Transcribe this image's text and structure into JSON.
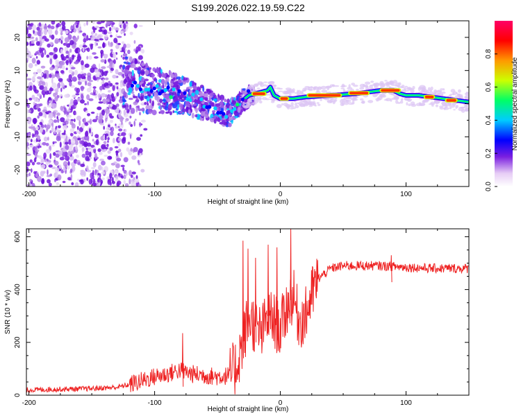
{
  "title": "S199.2026.022.19.59.C22",
  "chart_data": [
    {
      "type": "heatmap",
      "xlabel": "Height of straight line (km)",
      "ylabel": "Frequency (Hz)",
      "xlim": [
        -202,
        150
      ],
      "ylim": [
        -25,
        25
      ],
      "xticks": [
        -200,
        -100,
        0,
        100
      ],
      "yticks": [
        -20,
        -10,
        0,
        10,
        20
      ],
      "colorbar": {
        "label": "Normalized spectral amplitude",
        "range": [
          0,
          1
        ],
        "ticks": [
          0.0,
          0.2,
          0.4,
          0.6,
          0.8
        ],
        "tick_labels": [
          "0.0",
          "0.2",
          "0.4",
          "0.6",
          "0.8"
        ],
        "colors": [
          "#ffffff",
          "#6600cc",
          "#0000ff",
          "#00ccff",
          "#00ff66",
          "#ccff00",
          "#ff9900",
          "#ff0000",
          "#ff0066"
        ]
      },
      "ridge": {
        "x": [
          -120,
          -110,
          -100,
          -90,
          -80,
          -70,
          -60,
          -50,
          -40,
          -35,
          -30,
          -25,
          -20,
          -15,
          -10,
          -8,
          -5,
          0,
          10,
          20,
          40,
          60,
          80,
          90,
          95,
          100,
          110,
          120,
          130,
          140,
          150
        ],
        "freq": [
          6,
          5,
          4,
          3.5,
          2.5,
          1.5,
          0,
          -1.5,
          -3,
          -1,
          1,
          2.5,
          3,
          3.5,
          4,
          5,
          2.5,
          1.5,
          1.5,
          2,
          2.5,
          3,
          4,
          4,
          3,
          2.5,
          2.5,
          2,
          1.5,
          1,
          0.5
        ]
      },
      "peak_segments": [
        {
          "x": [
            -22,
            -12
          ],
          "freq": 3
        },
        {
          "x": [
            0,
            6
          ],
          "freq": 1.5
        },
        {
          "x": [
            22,
            48
          ],
          "freq": 2.5
        },
        {
          "x": [
            55,
            70
          ],
          "freq": 3.2
        },
        {
          "x": [
            80,
            95
          ],
          "freq": 4
        },
        {
          "x": [
            115,
            122
          ],
          "freq": 2
        },
        {
          "x": [
            132,
            140
          ],
          "freq": 1
        }
      ]
    },
    {
      "type": "line",
      "xlabel": "Height of straight line (km)",
      "ylabel": "SNR (10 * v/v)",
      "xlim": [
        -202,
        150
      ],
      "ylim": [
        0,
        630
      ],
      "xticks": [
        -200,
        -100,
        0,
        100
      ],
      "yticks": [
        0,
        200,
        400,
        600
      ],
      "series": [
        {
          "name": "SNR",
          "color": "#ee2222",
          "x": [
            -202,
            -180,
            -150,
            -130,
            -120,
            -110,
            -100,
            -90,
            -80,
            -70,
            -60,
            -50,
            -40,
            -35,
            -30,
            -25,
            -20,
            -15,
            -10,
            -5,
            0,
            5,
            10,
            15,
            20,
            25,
            30,
            40,
            50,
            60,
            80,
            100,
            120,
            150
          ],
          "y": [
            20,
            22,
            25,
            30,
            40,
            55,
            70,
            80,
            95,
            80,
            75,
            70,
            75,
            110,
            200,
            300,
            260,
            230,
            300,
            280,
            250,
            330,
            380,
            280,
            300,
            380,
            440,
            480,
            490,
            490,
            490,
            485,
            480,
            480
          ]
        }
      ],
      "spikes": [
        {
          "x": -78,
          "y": 235
        },
        {
          "x": -30,
          "y": 585
        },
        {
          "x": -26,
          "y": 555
        },
        {
          "x": -20,
          "y": 520
        },
        {
          "x": -10,
          "y": 570
        },
        {
          "x": -3,
          "y": 560
        },
        {
          "x": 8,
          "y": 630
        },
        {
          "x": 88,
          "y": 530
        }
      ]
    }
  ]
}
